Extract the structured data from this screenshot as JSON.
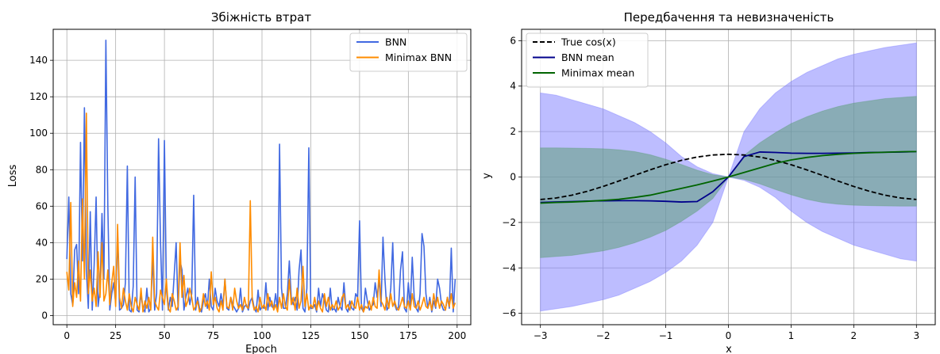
{
  "chart_data": [
    {
      "type": "line",
      "title": "Збіжність втрат",
      "xlabel": "Epoch",
      "ylabel": "Loss",
      "xlim": [
        -7,
        207
      ],
      "ylim": [
        -5,
        157
      ],
      "xticks": [
        0,
        25,
        50,
        75,
        100,
        125,
        150,
        175,
        200
      ],
      "yticks": [
        0,
        20,
        40,
        60,
        80,
        100,
        120,
        140
      ],
      "grid": true,
      "legend": "top-right",
      "series": [
        {
          "name": "BNN",
          "color": "#4169e1",
          "x": [
            0,
            1,
            2,
            3,
            4,
            5,
            6,
            7,
            8,
            9,
            10,
            11,
            12,
            13,
            14,
            15,
            16,
            17,
            18,
            19,
            20,
            21,
            22,
            23,
            24,
            25,
            26,
            27,
            28,
            29,
            30,
            31,
            32,
            33,
            34,
            35,
            36,
            37,
            38,
            39,
            40,
            41,
            42,
            43,
            44,
            45,
            46,
            47,
            48,
            49,
            50,
            51,
            52,
            53,
            54,
            55,
            56,
            57,
            58,
            59,
            60,
            61,
            62,
            63,
            64,
            65,
            66,
            67,
            68,
            69,
            70,
            71,
            72,
            73,
            74,
            75,
            76,
            77,
            78,
            79,
            80,
            81,
            82,
            83,
            84,
            85,
            86,
            87,
            88,
            89,
            90,
            91,
            92,
            93,
            94,
            95,
            96,
            97,
            98,
            99,
            100,
            101,
            102,
            103,
            104,
            105,
            106,
            107,
            108,
            109,
            110,
            111,
            112,
            113,
            114,
            115,
            116,
            117,
            118,
            119,
            120,
            121,
            122,
            123,
            124,
            125,
            126,
            127,
            128,
            129,
            130,
            131,
            132,
            133,
            134,
            135,
            136,
            137,
            138,
            139,
            140,
            141,
            142,
            143,
            144,
            145,
            146,
            147,
            148,
            149,
            150,
            151,
            152,
            153,
            154,
            155,
            156,
            157,
            158,
            159,
            160,
            161,
            162,
            163,
            164,
            165,
            166,
            167,
            168,
            169,
            170,
            171,
            172,
            173,
            174,
            175,
            176,
            177,
            178,
            179,
            180,
            181,
            182,
            183,
            184,
            185,
            186,
            187,
            188,
            189,
            190,
            191,
            192,
            193,
            194,
            195,
            196,
            197,
            198,
            199
          ],
          "values": [
            31,
            65,
            12,
            6,
            36,
            39,
            12,
            95,
            30,
            114,
            25,
            4,
            57,
            3,
            28,
            65,
            5,
            14,
            56,
            20,
            151,
            60,
            3,
            12,
            18,
            7,
            45,
            3,
            4,
            6,
            18,
            82,
            3,
            2,
            16,
            76,
            3,
            2,
            12,
            4,
            2,
            15,
            2,
            4,
            32,
            3,
            12,
            97,
            40,
            3,
            96,
            15,
            3,
            10,
            5,
            22,
            40,
            3,
            30,
            25,
            3,
            10,
            15,
            6,
            12,
            66,
            3,
            10,
            4,
            2,
            8,
            12,
            4,
            20,
            5,
            3,
            15,
            8,
            5,
            12,
            5,
            20,
            4,
            3,
            10,
            6,
            4,
            2,
            4,
            15,
            2,
            5,
            6,
            3,
            8,
            10,
            4,
            2,
            14,
            3,
            5,
            4,
            18,
            3,
            10,
            5,
            4,
            12,
            3,
            94,
            15,
            4,
            4,
            12,
            30,
            10,
            6,
            10,
            3,
            25,
            36,
            4,
            2,
            15,
            92,
            4,
            4,
            6,
            2,
            15,
            5,
            12,
            8,
            3,
            2,
            15,
            3,
            4,
            2,
            10,
            5,
            3,
            18,
            4,
            2,
            8,
            4,
            3,
            12,
            10,
            52,
            4,
            2,
            15,
            8,
            3,
            5,
            6,
            18,
            10,
            20,
            5,
            43,
            20,
            3,
            5,
            15,
            40,
            6,
            3,
            5,
            25,
            35,
            4,
            2,
            18,
            5,
            32,
            10,
            4,
            2,
            12,
            45,
            38,
            12,
            4,
            10,
            2,
            8,
            4,
            20,
            15,
            6,
            3,
            3,
            10,
            4,
            37,
            2,
            20
          ]
        },
        {
          "name": "Minimax BNN",
          "color": "#ff8c00",
          "x": [
            0,
            1,
            2,
            3,
            4,
            5,
            6,
            7,
            8,
            9,
            10,
            11,
            12,
            13,
            14,
            15,
            16,
            17,
            18,
            19,
            20,
            21,
            22,
            23,
            24,
            25,
            26,
            27,
            28,
            29,
            30,
            31,
            32,
            33,
            34,
            35,
            36,
            37,
            38,
            39,
            40,
            41,
            42,
            43,
            44,
            45,
            46,
            47,
            48,
            49,
            50,
            51,
            52,
            53,
            54,
            55,
            56,
            57,
            58,
            59,
            60,
            61,
            62,
            63,
            64,
            65,
            66,
            67,
            68,
            69,
            70,
            71,
            72,
            73,
            74,
            75,
            76,
            77,
            78,
            79,
            80,
            81,
            82,
            83,
            84,
            85,
            86,
            87,
            88,
            89,
            90,
            91,
            92,
            93,
            94,
            95,
            96,
            97,
            98,
            99,
            100,
            101,
            102,
            103,
            104,
            105,
            106,
            107,
            108,
            109,
            110,
            111,
            112,
            113,
            114,
            115,
            116,
            117,
            118,
            119,
            120,
            121,
            122,
            123,
            124,
            125,
            126,
            127,
            128,
            129,
            130,
            131,
            132,
            133,
            134,
            135,
            136,
            137,
            138,
            139,
            140,
            141,
            142,
            143,
            144,
            145,
            146,
            147,
            148,
            149,
            150,
            151,
            152,
            153,
            154,
            155,
            156,
            157,
            158,
            159,
            160,
            161,
            162,
            163,
            164,
            165,
            166,
            167,
            168,
            169,
            170,
            171,
            172,
            173,
            174,
            175,
            176,
            177,
            178,
            179,
            180,
            181,
            182,
            183,
            184,
            185,
            186,
            187,
            188,
            189,
            190,
            191,
            192,
            193,
            194,
            195,
            196,
            197,
            198,
            199
          ],
          "values": [
            24,
            14,
            62,
            5,
            18,
            10,
            30,
            8,
            64,
            20,
            111,
            12,
            25,
            8,
            15,
            5,
            35,
            10,
            40,
            8,
            12,
            25,
            6,
            18,
            27,
            5,
            50,
            10,
            4,
            15,
            8,
            3,
            12,
            5,
            2,
            10,
            6,
            3,
            15,
            2,
            8,
            4,
            10,
            3,
            43,
            8,
            5,
            3,
            14,
            10,
            6,
            20,
            4,
            2,
            12,
            8,
            3,
            5,
            40,
            10,
            22,
            5,
            8,
            15,
            10,
            3,
            5,
            8,
            2,
            4,
            12,
            5,
            8,
            3,
            24,
            6,
            10,
            4,
            2,
            8,
            3,
            20,
            5,
            4,
            10,
            3,
            15,
            8,
            4,
            6,
            3,
            10,
            5,
            4,
            63,
            8,
            3,
            5,
            2,
            10,
            4,
            6,
            3,
            12,
            5,
            8,
            3,
            6,
            2,
            10,
            4,
            12,
            5,
            3,
            20,
            6,
            10,
            3,
            15,
            4,
            8,
            27,
            5,
            12,
            3,
            6,
            4,
            10,
            3,
            8,
            4,
            2,
            12,
            5,
            10,
            3,
            6,
            4,
            8,
            3,
            5,
            10,
            12,
            4,
            6,
            3,
            8,
            5,
            4,
            10,
            3,
            6,
            2,
            5,
            4,
            8,
            3,
            10,
            5,
            4,
            25,
            8,
            6,
            3,
            10,
            4,
            12,
            5,
            8,
            4,
            3,
            6,
            10,
            5,
            4,
            8,
            3,
            12,
            5,
            4,
            8,
            3,
            6,
            10,
            5,
            4,
            8,
            3,
            12,
            5,
            10,
            4,
            8,
            6,
            3,
            10,
            5,
            12,
            4,
            7
          ]
        }
      ]
    },
    {
      "type": "area",
      "title": "Передбачення та невизначеність",
      "xlabel": "x",
      "ylabel": "y",
      "xlim": [
        -3.3,
        3.3
      ],
      "ylim": [
        -6.5,
        6.5
      ],
      "xticks": [
        -3,
        -2,
        -1,
        0,
        1,
        2,
        3
      ],
      "yticks": [
        -6,
        -4,
        -2,
        0,
        2,
        4,
        6
      ],
      "grid": true,
      "legend": "top-left",
      "x": [
        -3,
        -2.75,
        -2.5,
        -2.25,
        -2,
        -1.75,
        -1.5,
        -1.25,
        -1,
        -0.75,
        -0.5,
        -0.25,
        0,
        0.25,
        0.5,
        0.75,
        1,
        1.25,
        1.5,
        1.75,
        2,
        2.25,
        2.5,
        2.75,
        3
      ],
      "series": [
        {
          "name": "True cos(x)",
          "color": "#000000",
          "style": "dashed",
          "values": [
            -0.99,
            -0.924,
            -0.801,
            -0.628,
            -0.416,
            -0.178,
            0.071,
            0.315,
            0.54,
            0.732,
            0.878,
            0.969,
            1.0,
            0.969,
            0.878,
            0.732,
            0.54,
            0.315,
            0.071,
            -0.178,
            -0.416,
            -0.628,
            -0.801,
            -0.924,
            -0.99
          ]
        },
        {
          "name": "BNN mean",
          "color": "#00008b",
          "values": [
            -1.12,
            -1.1,
            -1.08,
            -1.06,
            -1.05,
            -1.04,
            -1.04,
            -1.05,
            -1.07,
            -1.1,
            -1.08,
            -0.65,
            0.0,
            0.9,
            1.1,
            1.08,
            1.05,
            1.04,
            1.04,
            1.05,
            1.06,
            1.08,
            1.09,
            1.1,
            1.12
          ],
          "band_upper": [
            3.7,
            3.6,
            3.4,
            3.2,
            3.0,
            2.7,
            2.4,
            2.0,
            1.5,
            0.9,
            0.45,
            0.15,
            0.0,
            2.0,
            3.0,
            3.7,
            4.2,
            4.6,
            4.9,
            5.2,
            5.4,
            5.55,
            5.7,
            5.8,
            5.9
          ],
          "band_lower": [
            -5.9,
            -5.8,
            -5.7,
            -5.55,
            -5.4,
            -5.2,
            -4.9,
            -4.6,
            -4.2,
            -3.7,
            -3.0,
            -2.0,
            0.0,
            -0.15,
            -0.45,
            -0.9,
            -1.5,
            -2.0,
            -2.4,
            -2.7,
            -3.0,
            -3.2,
            -3.4,
            -3.6,
            -3.7
          ],
          "band_color": "#7b7bff"
        },
        {
          "name": "Minimax mean",
          "color": "#006400",
          "values": [
            -1.15,
            -1.12,
            -1.1,
            -1.07,
            -1.03,
            -0.98,
            -0.9,
            -0.8,
            -0.65,
            -0.5,
            -0.35,
            -0.18,
            0.0,
            0.2,
            0.4,
            0.6,
            0.75,
            0.86,
            0.94,
            1.0,
            1.04,
            1.07,
            1.09,
            1.11,
            1.12
          ],
          "band_upper": [
            1.28,
            1.28,
            1.27,
            1.26,
            1.24,
            1.2,
            1.12,
            0.98,
            0.78,
            0.55,
            0.3,
            0.1,
            0.0,
            0.95,
            1.5,
            1.95,
            2.35,
            2.65,
            2.9,
            3.1,
            3.25,
            3.35,
            3.45,
            3.5,
            3.55
          ],
          "band_lower": [
            -3.55,
            -3.5,
            -3.45,
            -3.35,
            -3.25,
            -3.1,
            -2.9,
            -2.65,
            -2.35,
            -1.95,
            -1.5,
            -0.95,
            0.0,
            -0.1,
            -0.3,
            -0.55,
            -0.78,
            -0.98,
            -1.12,
            -1.2,
            -1.24,
            -1.26,
            -1.27,
            -1.28,
            -1.28
          ],
          "band_color": "#5f9e7a"
        }
      ]
    }
  ]
}
